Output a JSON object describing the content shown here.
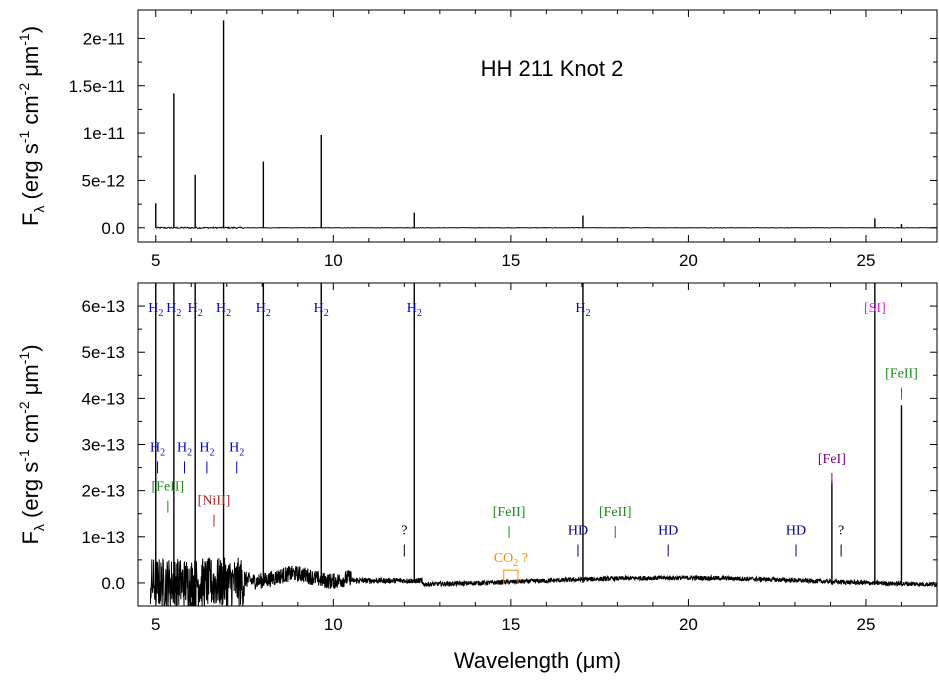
{
  "chart_data": [
    {
      "type": "line",
      "title": "HH 211 Knot 2",
      "xlim": [
        4.5,
        27
      ],
      "ylim": [
        -1.5e-12,
        2.3e-11
      ],
      "x_ticks": [
        "5",
        "10",
        "15",
        "20",
        "25"
      ],
      "x_tick_values": [
        5,
        10,
        15,
        20,
        25
      ],
      "y_ticks": [
        "0.0",
        "5e-12",
        "1e-11",
        "1.5e-11",
        "2e-11"
      ],
      "y_tick_values": [
        0,
        5e-12,
        1e-11,
        1.5e-11,
        2e-11
      ],
      "ylabel": "Fλ (erg s⁻¹ cm⁻² μm⁻¹)",
      "ylabel_parts": {
        "F": "F",
        "sub": "λ",
        "a": " (erg s",
        "e1": "-1",
        "b": " cm",
        "e2": "-2",
        "mu": " μm",
        "e3": "-1",
        "c": ")"
      },
      "series": [
        {
          "x": [
            5.0,
            5.51,
            6.11,
            6.91,
            8.03,
            9.66,
            12.28,
            17.03,
            25.25,
            26.0
          ],
          "values": [
            2.6e-12,
            1.42e-11,
            5.6e-12,
            2.19e-11,
            7e-12,
            9.8e-12,
            1.6e-12,
            1.3e-12,
            1e-12,
            4e-13
          ]
        }
      ]
    },
    {
      "type": "line",
      "xlim": [
        4.5,
        27
      ],
      "ylim": [
        -5e-14,
        6.5e-13
      ],
      "xlabel": "Wavelength (μm)",
      "xlabel_parts": {
        "a": "Wavelength (",
        "mu": "μ",
        "b": "m)"
      },
      "x_ticks": [
        "5",
        "10",
        "15",
        "20",
        "25"
      ],
      "x_tick_values": [
        5,
        10,
        15,
        20,
        25
      ],
      "y_ticks": [
        "0.0",
        "1e-13",
        "2e-13",
        "3e-13",
        "4e-13",
        "5e-13",
        "6e-13"
      ],
      "y_tick_values": [
        0,
        1e-13,
        2e-13,
        3e-13,
        4e-13,
        5e-13,
        6e-13
      ],
      "ylabel": "Fλ (erg s⁻¹ cm⁻² μm⁻¹)",
      "series": [
        {
          "x": [
            5.0,
            5.51,
            6.11,
            6.91,
            8.03,
            9.66,
            12.28,
            17.03,
            24.04,
            25.25,
            26.0
          ],
          "values": [
            6.5e-13,
            6.5e-13,
            6.5e-13,
            6.5e-13,
            6.5e-13,
            6.5e-13,
            6.5e-13,
            6.5e-13,
            2.2e-13,
            6.5e-13,
            3.85e-13
          ]
        }
      ],
      "annotations": [
        {
          "x": 5.0,
          "text": "H",
          "sub": "2",
          "color": "#0000cc",
          "row": "top",
          "tick": false
        },
        {
          "x": 5.51,
          "text": "H",
          "sub": "2",
          "color": "#0000cc",
          "row": "top",
          "tick": false
        },
        {
          "x": 6.11,
          "text": "H",
          "sub": "2",
          "color": "#0000cc",
          "row": "top",
          "tick": false
        },
        {
          "x": 6.91,
          "text": "H",
          "sub": "2",
          "color": "#0000cc",
          "row": "top",
          "tick": false
        },
        {
          "x": 8.03,
          "text": "H",
          "sub": "2",
          "color": "#0000cc",
          "row": "top",
          "tick": false
        },
        {
          "x": 9.66,
          "text": "H",
          "sub": "2",
          "color": "#0000cc",
          "row": "top",
          "tick": false
        },
        {
          "x": 12.28,
          "text": "H",
          "sub": "2",
          "color": "#0000cc",
          "row": "top",
          "tick": false
        },
        {
          "x": 17.03,
          "text": "H",
          "sub": "2",
          "color": "#0000cc",
          "row": "top",
          "tick": false
        },
        {
          "x": 25.25,
          "text": "[SI]",
          "sub": "",
          "color": "#e020e0",
          "row": "top",
          "tick": false
        },
        {
          "x": 26.0,
          "text": "[FeII]",
          "sub": "",
          "color": "#1a8a1a",
          "level": 4.45e-13,
          "tick": true
        },
        {
          "x": 5.05,
          "text": "H",
          "sub": "2",
          "color": "#0000cc",
          "level": 2.85e-13,
          "tick": true
        },
        {
          "x": 5.81,
          "text": "H",
          "sub": "2",
          "color": "#0000cc",
          "level": 2.85e-13,
          "tick": true
        },
        {
          "x": 6.44,
          "text": "H",
          "sub": "2",
          "color": "#0000cc",
          "level": 2.85e-13,
          "tick": true
        },
        {
          "x": 7.28,
          "text": "H",
          "sub": "2",
          "color": "#0000cc",
          "level": 2.85e-13,
          "tick": true
        },
        {
          "x": 5.34,
          "text": "[FeII]",
          "sub": "",
          "color": "#1a8a1a",
          "level": 2e-13,
          "tick": true
        },
        {
          "x": 6.64,
          "text": "[NiII]",
          "sub": "",
          "color": "#b22222",
          "level": 1.7e-13,
          "tick": true
        },
        {
          "x": 14.95,
          "text": "[FeII]",
          "sub": "",
          "color": "#1a8a1a",
          "level": 1.45e-13,
          "tick": true
        },
        {
          "x": 17.94,
          "text": "[FeII]",
          "sub": "",
          "color": "#1a8a1a",
          "level": 1.45e-13,
          "tick": true
        },
        {
          "x": 12.0,
          "text": "?",
          "sub": "",
          "color": "#000000",
          "level": 1.05e-13,
          "tick": true
        },
        {
          "x": 16.89,
          "text": "HD",
          "sub": "",
          "color": "#000080",
          "level": 1.05e-13,
          "tick": true
        },
        {
          "x": 19.43,
          "text": "HD",
          "sub": "",
          "color": "#000080",
          "level": 1.05e-13,
          "tick": true
        },
        {
          "x": 23.03,
          "text": "HD",
          "sub": "",
          "color": "#000080",
          "level": 1.05e-13,
          "tick": true
        },
        {
          "x": 24.04,
          "text": "[FeI]",
          "sub": "",
          "color": "#800080",
          "level": 2.6e-13,
          "tick": true
        },
        {
          "x": 24.3,
          "text": "?",
          "sub": "",
          "color": "#000000",
          "level": 1.05e-13,
          "tick": true
        },
        {
          "x": 15.0,
          "text": "CO",
          "sub": "2",
          "suffix": " ?",
          "color": "#ff8c00",
          "level": 4.5e-14,
          "tick": false,
          "bracket": [
            14.8,
            15.2
          ]
        }
      ]
    }
  ]
}
